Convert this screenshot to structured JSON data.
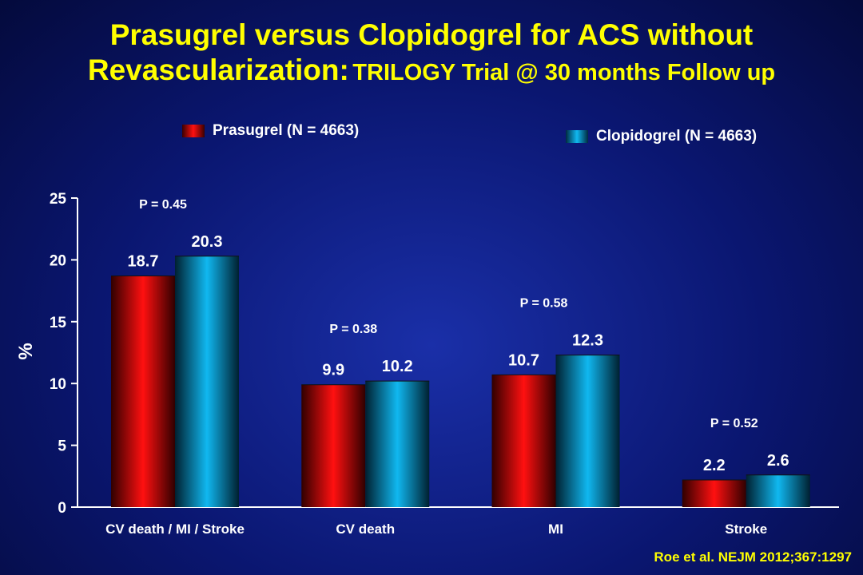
{
  "title": {
    "line1": "Prasugrel versus Clopidogrel for ACS without",
    "line2_main": "Revascularization:",
    "line2_sub": "TRILOGY Trial @ 30 months Follow up"
  },
  "source": "Roe et al. NEJM 2012;367:1297",
  "colors": {
    "prasugrel": "#ff1010",
    "clopidogrel": "#10b8f0",
    "title": "#ffff00"
  },
  "chart_data": {
    "type": "bar",
    "ylabel": "%",
    "ylim": [
      0,
      25
    ],
    "yticks": [
      "0",
      "5",
      "10",
      "15",
      "20",
      "25"
    ],
    "categories": [
      "CV death / MI / Stroke",
      "CV death",
      "MI",
      "Stroke"
    ],
    "series": [
      {
        "name": "Prasugrel (N = 4663)",
        "values": [
          18.7,
          9.9,
          10.7,
          2.2
        ],
        "labels": [
          "18.7",
          "9.9",
          "10.7",
          "2.2"
        ]
      },
      {
        "name": "Clopidogrel (N = 4663)",
        "values": [
          20.3,
          10.2,
          12.3,
          2.6
        ],
        "labels": [
          "20.3",
          "10.2",
          "12.3",
          "2.6"
        ]
      }
    ],
    "pvalues": [
      "P = 0.45",
      "P = 0.38",
      "P = 0.58",
      "P = 0.52"
    ],
    "legend_placement": "top"
  }
}
